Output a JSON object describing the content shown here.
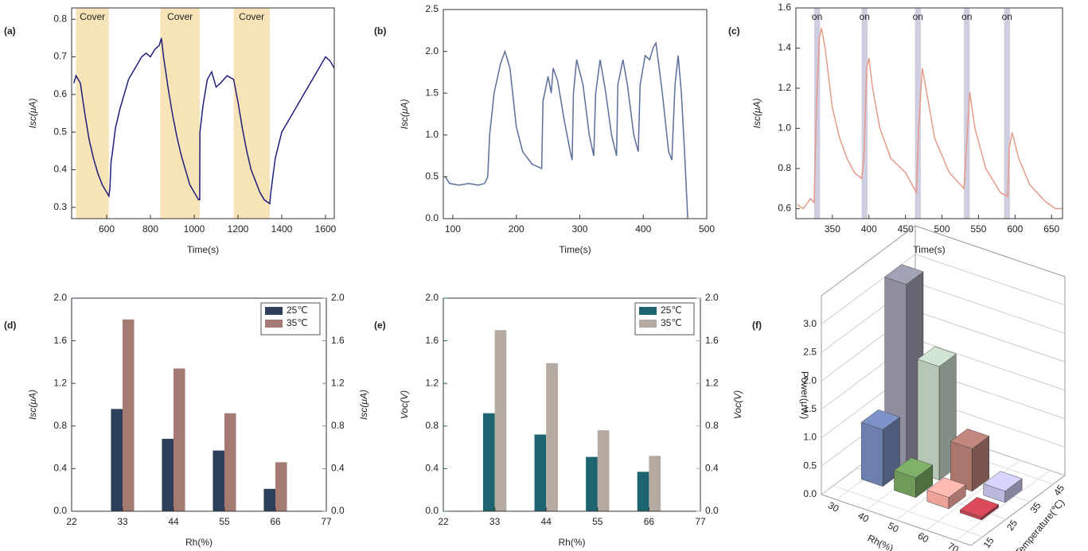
{
  "chart_data": [
    {
      "type": "line",
      "panel_label": "(a)",
      "xlabel": "Time(s)",
      "ylabel": "Isc(μA)",
      "xlim": [
        440,
        1640
      ],
      "xticks": [
        600,
        800,
        1000,
        1200,
        1400,
        1600
      ],
      "ylim": [
        0.27,
        0.83
      ],
      "yticks": [
        0.3,
        0.4,
        0.5,
        0.6,
        0.7,
        0.8
      ],
      "band_color": "#f6e4b8",
      "bands": [
        {
          "x": [
            460,
            610
          ],
          "label": "Cover"
        },
        {
          "x": [
            845,
            1025
          ],
          "label": "Cover"
        },
        {
          "x": [
            1180,
            1345
          ],
          "label": "Cover"
        }
      ],
      "x": [
        450,
        460,
        480,
        500,
        520,
        540,
        560,
        580,
        600,
        610,
        615,
        620,
        625,
        640,
        660,
        680,
        700,
        720,
        740,
        760,
        780,
        800,
        820,
        840,
        850,
        860,
        880,
        900,
        920,
        940,
        960,
        980,
        1000,
        1020,
        1025,
        1026,
        1040,
        1060,
        1080,
        1100,
        1120,
        1150,
        1180,
        1200,
        1220,
        1240,
        1260,
        1280,
        1300,
        1320,
        1345,
        1350,
        1370,
        1400,
        1450,
        1500,
        1550,
        1600,
        1620,
        1640
      ],
      "series": [
        {
          "color": "#1f1f7a",
          "values": [
            0.63,
            0.65,
            0.63,
            0.55,
            0.48,
            0.43,
            0.39,
            0.36,
            0.34,
            0.33,
            0.35,
            0.42,
            0.44,
            0.51,
            0.56,
            0.6,
            0.64,
            0.66,
            0.68,
            0.7,
            0.71,
            0.7,
            0.72,
            0.73,
            0.75,
            0.7,
            0.62,
            0.55,
            0.49,
            0.44,
            0.4,
            0.36,
            0.34,
            0.32,
            0.32,
            0.5,
            0.57,
            0.64,
            0.66,
            0.62,
            0.63,
            0.65,
            0.64,
            0.58,
            0.51,
            0.45,
            0.4,
            0.37,
            0.34,
            0.32,
            0.31,
            0.34,
            0.43,
            0.5,
            0.55,
            0.6,
            0.65,
            0.7,
            0.69,
            0.67
          ]
        }
      ]
    },
    {
      "type": "line",
      "panel_label": "(b)",
      "xlabel": "Time(s)",
      "ylabel": "Isc(μA)",
      "xlim": [
        85,
        500
      ],
      "xticks": [
        100,
        200,
        300,
        400,
        500
      ],
      "ylim": [
        0,
        2.5
      ],
      "yticks": [
        {
          "value": 0,
          "label": "0.0"
        },
        0.5,
        {
          "value": 1,
          "label": "1.0"
        },
        1.5,
        {
          "value": 2,
          "label": "2.0"
        },
        2.5
      ],
      "x": [
        88,
        95,
        110,
        125,
        140,
        150,
        155,
        158,
        165,
        175,
        182,
        190,
        200,
        210,
        225,
        240,
        242,
        250,
        255,
        258,
        265,
        275,
        285,
        288,
        290,
        295,
        305,
        315,
        322,
        325,
        332,
        340,
        350,
        358,
        360,
        368,
        375,
        385,
        392,
        395,
        403,
        410,
        416,
        420,
        430,
        440,
        445,
        450,
        455,
        460,
        465,
        470
      ],
      "series": [
        {
          "color": "#5b6f9a",
          "values": [
            0.5,
            0.42,
            0.4,
            0.42,
            0.4,
            0.42,
            0.5,
            1.0,
            1.5,
            1.85,
            2.0,
            1.8,
            1.1,
            0.8,
            0.65,
            0.6,
            1.4,
            1.7,
            1.5,
            1.8,
            1.65,
            1.2,
            0.8,
            0.7,
            1.5,
            1.9,
            1.6,
            1.0,
            0.75,
            1.5,
            1.9,
            1.55,
            1.0,
            0.75,
            1.6,
            1.9,
            1.6,
            1.0,
            0.8,
            1.6,
            1.95,
            1.9,
            2.05,
            2.1,
            1.5,
            0.8,
            0.7,
            1.6,
            1.95,
            1.5,
            0.8,
            0.0
          ]
        }
      ]
    },
    {
      "type": "line",
      "panel_label": "(c)",
      "xlabel": "Time(s)",
      "ylabel": "Isc(μA)",
      "xlim": [
        300,
        665
      ],
      "xticks": [
        350,
        400,
        450,
        500,
        550,
        600,
        650
      ],
      "ylim": [
        0.55,
        1.6
      ],
      "yticks": [
        0.6,
        0.8,
        {
          "value": 1,
          "label": "1.0"
        },
        1.2,
        1.4,
        1.6
      ],
      "band_color": "#cfcde0",
      "bands": [
        {
          "x": [
            325,
            333
          ],
          "label": "on"
        },
        {
          "x": [
            390,
            398
          ],
          "label": "on"
        },
        {
          "x": [
            463,
            471
          ],
          "label": "on"
        },
        {
          "x": [
            530,
            538
          ],
          "label": "on"
        },
        {
          "x": [
            585,
            593
          ],
          "label": "on"
        }
      ],
      "x": [
        302,
        310,
        320,
        325,
        328,
        332,
        335,
        340,
        350,
        360,
        370,
        380,
        390,
        393,
        397,
        400,
        405,
        415,
        430,
        450,
        465,
        468,
        473,
        478,
        490,
        510,
        530,
        535,
        538,
        545,
        560,
        580,
        590,
        592,
        596,
        605,
        620,
        640,
        655,
        665
      ],
      "series": [
        {
          "color": "#e59a8a",
          "values": [
            0.62,
            0.6,
            0.65,
            0.63,
            1.1,
            1.45,
            1.5,
            1.4,
            1.1,
            0.95,
            0.85,
            0.78,
            0.75,
            0.85,
            1.3,
            1.35,
            1.2,
            1.0,
            0.85,
            0.78,
            0.68,
            1.0,
            1.3,
            1.2,
            0.95,
            0.78,
            0.7,
            1.0,
            1.18,
            1.0,
            0.8,
            0.68,
            0.66,
            0.9,
            0.98,
            0.85,
            0.72,
            0.64,
            0.6,
            0.6
          ]
        }
      ]
    },
    {
      "type": "bar",
      "panel_label": "(d)",
      "xlabel": "Rh(%)",
      "ylabel": "Isc(μA)",
      "y2label": "Isc(μA)",
      "ylabel_color": "#2e3f5c",
      "y2label_color": "#a57a72",
      "legend": "upper right",
      "x": [
        33,
        44,
        55,
        66
      ],
      "xlim": [
        22,
        77
      ],
      "xticks": [
        22,
        33,
        44,
        55,
        66,
        77
      ],
      "ylim": [
        0,
        2
      ],
      "yticks": [
        {
          "value": 0,
          "label": "0.0"
        },
        0.4,
        0.8,
        1.2,
        1.6,
        {
          "value": 2,
          "label": "2.0"
        }
      ],
      "y2lim": [
        0,
        2
      ],
      "y2ticks": [
        {
          "value": 0,
          "label": "0.0"
        },
        0.4,
        0.8,
        1.2,
        1.6,
        {
          "value": 2,
          "label": "2.0"
        }
      ],
      "series": [
        {
          "name": "25℃",
          "color": "#2e3f5c",
          "values": [
            0.96,
            0.68,
            0.57,
            0.21
          ]
        },
        {
          "name": "35℃",
          "color": "#a57a72",
          "axis": "y2",
          "values": [
            1.8,
            1.34,
            0.92,
            0.46
          ]
        }
      ]
    },
    {
      "type": "bar",
      "panel_label": "(e)",
      "xlabel": "Rh(%)",
      "ylabel": "Voc(V)",
      "y2label": "Voc(V)",
      "ylabel_color": "#1e6470",
      "y2label_color": "#b5aaa2",
      "legend": "upper right",
      "x": [
        33,
        44,
        55,
        66
      ],
      "xlim": [
        22,
        77
      ],
      "xticks": [
        22,
        33,
        44,
        55,
        66,
        77
      ],
      "ylim": [
        0,
        2
      ],
      "yticks": [
        {
          "value": 0,
          "label": "0.0"
        },
        0.4,
        0.8,
        1.2,
        1.6,
        {
          "value": 2,
          "label": "2.0"
        }
      ],
      "y2lim": [
        0,
        2
      ],
      "y2ticks": [
        {
          "value": 0,
          "label": "0.0"
        },
        0.4,
        0.8,
        1.2,
        1.6,
        {
          "value": 2,
          "label": "2.0"
        }
      ],
      "series": [
        {
          "name": "25℃",
          "color": "#1e6470",
          "values": [
            0.92,
            0.72,
            0.51,
            0.37
          ]
        },
        {
          "name": "35℃",
          "color": "#b5aaa2",
          "axis": "y2",
          "values": [
            1.7,
            1.39,
            0.76,
            0.52
          ]
        }
      ]
    },
    {
      "type": "bar3d",
      "panel_label": "(f)",
      "xlabel": "Rh(%)",
      "ylabel": "Temperature(℃)",
      "zlabel": "Power(μW)",
      "xlim": [
        25,
        75
      ],
      "xticks": [
        30,
        40,
        50,
        60,
        70
      ],
      "ylim": [
        10,
        50
      ],
      "yticks": [
        15,
        25,
        35,
        45
      ],
      "zlim": [
        0,
        3.5
      ],
      "zticks": [
        {
          "value": 0,
          "label": "0.0"
        },
        0.5,
        {
          "value": 1,
          "label": "1.0"
        },
        1.5,
        {
          "value": 2,
          "label": "2.0"
        },
        2.5,
        {
          "value": 3,
          "label": "3.0"
        }
      ],
      "bars": [
        {
          "x": 33,
          "y": 35,
          "z": 3.25,
          "color": "#8e8e9e"
        },
        {
          "x": 44,
          "y": 35,
          "z": 2.0,
          "color": "#b6c7b8"
        },
        {
          "x": 55,
          "y": 35,
          "z": 0.75,
          "color": "#a9756d"
        },
        {
          "x": 66,
          "y": 35,
          "z": 0.2,
          "color": "#b9b9de"
        },
        {
          "x": 33,
          "y": 25,
          "z": 1.0,
          "color": "#6d7fae"
        },
        {
          "x": 44,
          "y": 25,
          "z": 0.35,
          "color": "#6f9a5a"
        },
        {
          "x": 55,
          "y": 25,
          "z": 0.2,
          "color": "#eea39a"
        },
        {
          "x": 66,
          "y": 25,
          "z": 0.05,
          "color": "#c0404f"
        }
      ]
    }
  ]
}
